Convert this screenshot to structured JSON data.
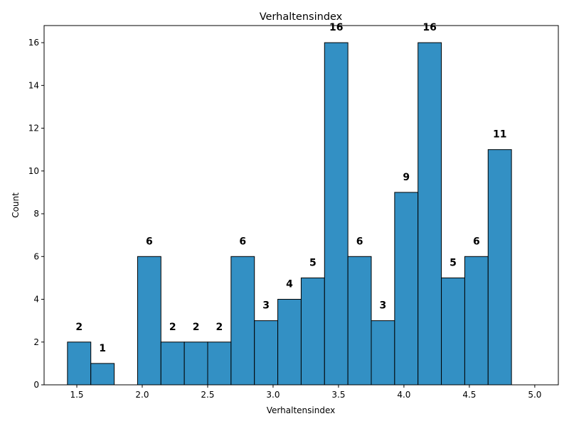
{
  "chart_data": {
    "type": "bar",
    "title": "Verhaltensindex",
    "xlabel": "Verhaltensindex",
    "ylabel": "Count",
    "bin_start": 1.4286,
    "bin_width": 0.1786,
    "values": [
      2,
      1,
      0,
      6,
      2,
      2,
      2,
      6,
      3,
      4,
      5,
      16,
      6,
      3,
      9,
      16,
      5,
      6,
      11
    ],
    "bar_labels": [
      "2",
      "1",
      "",
      "6",
      "2",
      "2",
      "2",
      "6",
      "3",
      "4",
      "5",
      "16",
      "6",
      "3",
      "9",
      "16",
      "5",
      "6",
      "11"
    ],
    "xlim": [
      1.25,
      5.18
    ],
    "ylim": [
      0,
      16.8
    ],
    "xticks": [
      1.5,
      2.0,
      2.5,
      3.0,
      3.5,
      4.0,
      4.5,
      5.0
    ],
    "xtick_labels": [
      "1.5",
      "2.0",
      "2.5",
      "3.0",
      "3.5",
      "4.0",
      "4.5",
      "5.0"
    ],
    "yticks": [
      0,
      2,
      4,
      6,
      8,
      10,
      12,
      14,
      16
    ],
    "ytick_labels": [
      "0",
      "2",
      "4",
      "6",
      "8",
      "10",
      "12",
      "14",
      "16"
    ],
    "bar_color": "#3390c4",
    "edge_color": "#000000",
    "grid": false
  }
}
